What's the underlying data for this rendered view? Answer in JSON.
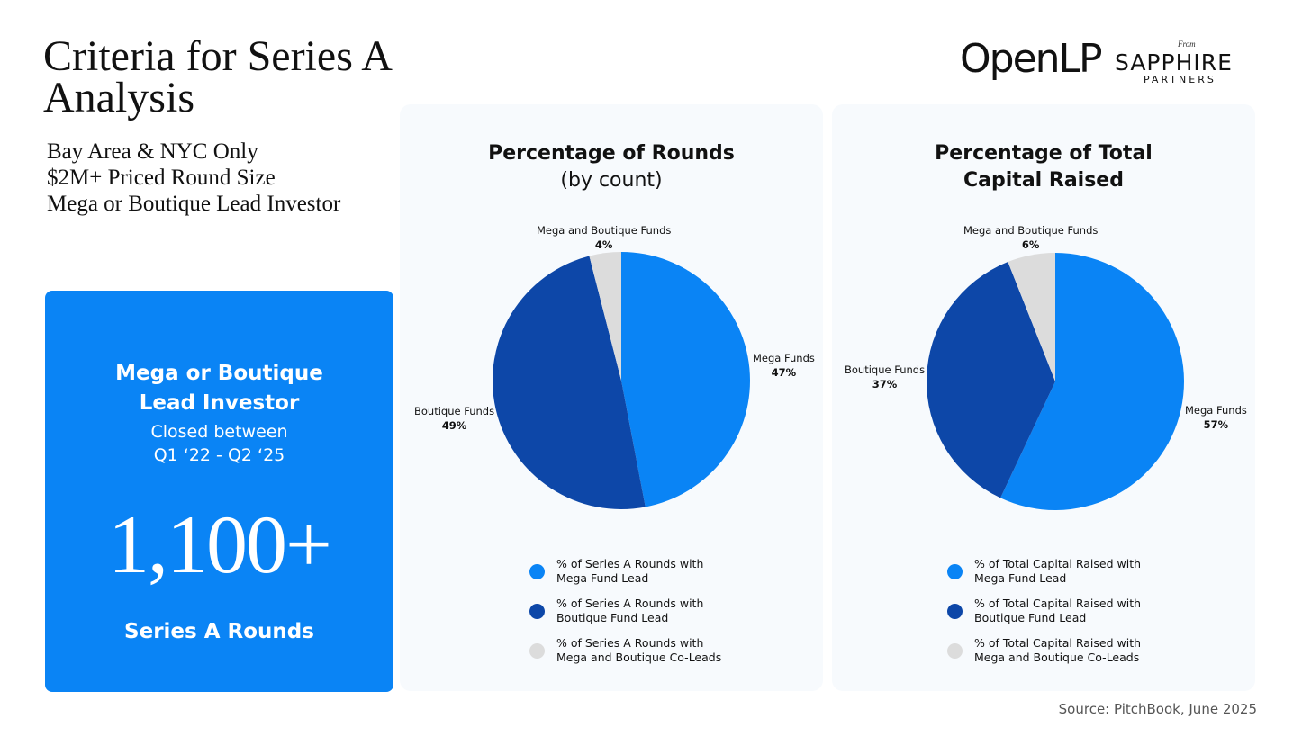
{
  "title": "Criteria for Series A Analysis",
  "criteria": [
    "Bay Area & NYC Only",
    "$2M+ Priced Round Size",
    "Mega or Boutique Lead Investor"
  ],
  "logos": {
    "openlp": "OpenLP",
    "from": "From",
    "sapphire": "SAPPHIRE",
    "partners": "PARTNERS"
  },
  "stat_card": {
    "heading_line1": "Mega or Boutique",
    "heading_line2": "Lead Investor",
    "sub_line1": "Closed between",
    "sub_line2": "Q1 ‘22 - Q2 ‘25",
    "number": "1,100+",
    "footer": "Series A Rounds",
    "color": "#0a84f5"
  },
  "colors": {
    "mega": "#0a84f5",
    "boutique": "#0d47a8",
    "both": "#dcdcdc"
  },
  "source": "Source: PitchBook, June 2025",
  "chart_data": [
    {
      "type": "pie",
      "title": "Percentage of Rounds",
      "subtitle": "(by count)",
      "slices": [
        {
          "name": "Mega Funds",
          "label": "47%",
          "value": 47,
          "color": "#0a84f5"
        },
        {
          "name": "Boutique Funds",
          "label": "49%",
          "value": 49,
          "color": "#0d47a8"
        },
        {
          "name": "Mega and Boutique Funds",
          "label": "4%",
          "value": 4,
          "color": "#dcdcdc"
        }
      ],
      "legend": [
        "% of Series A Rounds with Mega Fund Lead",
        "% of Series A Rounds with Boutique Fund Lead",
        "% of Series A Rounds with Mega and Boutique Co-Leads"
      ]
    },
    {
      "type": "pie",
      "title": "Percentage of Total Capital Raised",
      "subtitle": "",
      "slices": [
        {
          "name": "Mega Funds",
          "label": "57%",
          "value": 57,
          "color": "#0a84f5"
        },
        {
          "name": "Boutique Funds",
          "label": "37%",
          "value": 37,
          "color": "#0d47a8"
        },
        {
          "name": "Mega and Boutique Funds",
          "label": "6%",
          "value": 6,
          "color": "#dcdcdc"
        }
      ],
      "legend": [
        "% of Total Capital Raised with Mega Fund Lead",
        "% of Total Capital Raised with Boutique Fund Lead",
        "% of Total Capital Raised with Mega and Boutique Co-Leads"
      ]
    }
  ]
}
